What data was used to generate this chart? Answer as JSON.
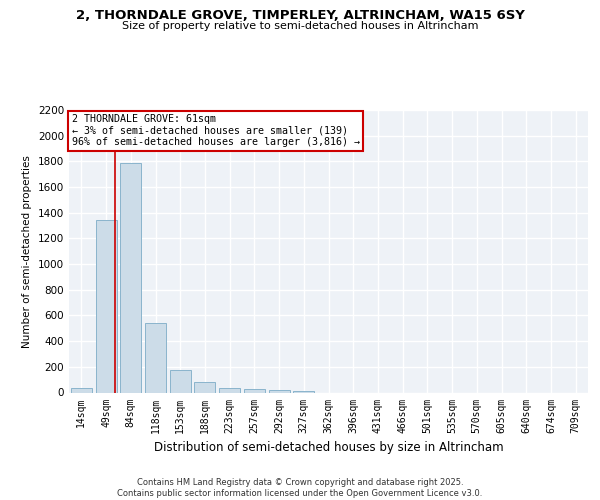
{
  "title": "2, THORNDALE GROVE, TIMPERLEY, ALTRINCHAM, WA15 6SY",
  "subtitle": "Size of property relative to semi-detached houses in Altrincham",
  "xlabel": "Distribution of semi-detached houses by size in Altrincham",
  "ylabel": "Number of semi-detached properties",
  "bar_color": "#ccdce8",
  "bar_edge_color": "#8ab4cc",
  "categories": [
    "14sqm",
    "49sqm",
    "84sqm",
    "118sqm",
    "153sqm",
    "188sqm",
    "223sqm",
    "257sqm",
    "292sqm",
    "327sqm",
    "362sqm",
    "396sqm",
    "431sqm",
    "466sqm",
    "501sqm",
    "535sqm",
    "570sqm",
    "605sqm",
    "640sqm",
    "674sqm",
    "709sqm"
  ],
  "values": [
    35,
    1340,
    1790,
    540,
    175,
    85,
    35,
    25,
    20,
    10,
    0,
    0,
    0,
    0,
    0,
    0,
    0,
    0,
    0,
    0,
    0
  ],
  "ylim": [
    0,
    2200
  ],
  "yticks": [
    0,
    200,
    400,
    600,
    800,
    1000,
    1200,
    1400,
    1600,
    1800,
    2000,
    2200
  ],
  "red_line_x": 1.35,
  "annotation_title": "2 THORNDALE GROVE: 61sqm",
  "annotation_line1": "← 3% of semi-detached houses are smaller (139)",
  "annotation_line2": "96% of semi-detached houses are larger (3,816) →",
  "annotation_box_color": "#ffffff",
  "annotation_border_color": "#cc0000",
  "footer_line1": "Contains HM Land Registry data © Crown copyright and database right 2025.",
  "footer_line2": "Contains public sector information licensed under the Open Government Licence v3.0.",
  "background_color": "#eef2f7",
  "grid_color": "#ffffff",
  "fig_bg_color": "#ffffff"
}
